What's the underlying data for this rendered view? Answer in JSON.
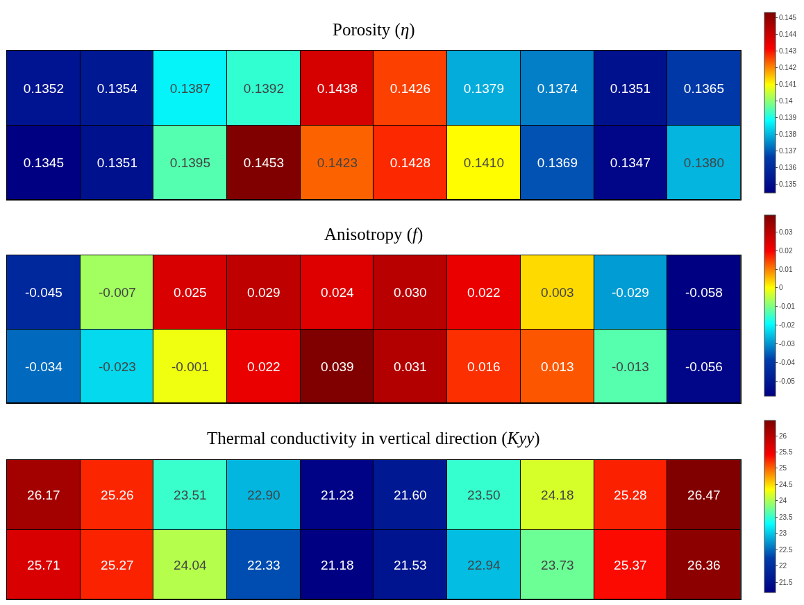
{
  "chart_data": [
    {
      "type": "heatmap",
      "title": "Porosity (η)",
      "categories": [
        null,
        null,
        null,
        null,
        null,
        null,
        null,
        null,
        null,
        null
      ],
      "y_categories": [
        null,
        null
      ],
      "cells": [
        [
          0.1352,
          0.1354,
          0.1387,
          0.1392,
          0.1438,
          0.1426,
          0.1379,
          0.1374,
          0.1351,
          0.1365
        ],
        [
          0.1345,
          0.1351,
          0.1395,
          0.1453,
          0.1423,
          0.1428,
          0.141,
          0.1369,
          0.1347,
          0.138
        ]
      ],
      "cell_labels": [
        [
          "0.1352",
          "0.1354",
          "0.1387",
          "0.1392",
          "0.1438",
          "0.1426",
          "0.1379",
          "0.1374",
          "0.1351",
          "0.1365"
        ],
        [
          "0.1345",
          "0.1351",
          "0.1395",
          "0.1453",
          "0.1423",
          "0.1428",
          "0.1410",
          "0.1369",
          "0.1347",
          "0.1380"
        ]
      ],
      "clim": [
        0.1345,
        0.1453
      ],
      "cticks": [
        0.135,
        0.136,
        0.137,
        0.138,
        0.139,
        0.14,
        0.141,
        0.142,
        0.143,
        0.144,
        0.145
      ]
    },
    {
      "type": "heatmap",
      "title": "Anisotropy (f)",
      "categories": [
        null,
        null,
        null,
        null,
        null,
        null,
        null,
        null,
        null,
        null
      ],
      "y_categories": [
        null,
        null
      ],
      "cells": [
        [
          -0.045,
          -0.007,
          0.025,
          0.029,
          0.024,
          0.03,
          0.022,
          0.003,
          -0.029,
          -0.058
        ],
        [
          -0.034,
          -0.023,
          -0.001,
          0.022,
          0.039,
          0.031,
          0.016,
          0.013,
          -0.013,
          -0.056
        ]
      ],
      "cell_labels": [
        [
          "-0.045",
          "-0.007",
          "0.025",
          "0.029",
          "0.024",
          "0.030",
          "0.022",
          "0.003",
          "-0.029",
          "-0.058"
        ],
        [
          "-0.034",
          "-0.023",
          "-0.001",
          "0.022",
          "0.039",
          "0.031",
          "0.016",
          "0.013",
          "-0.013",
          "-0.056"
        ]
      ],
      "clim": [
        -0.058,
        0.039
      ],
      "cticks": [
        -0.05,
        -0.04,
        -0.03,
        -0.02,
        -0.01,
        0,
        0.01,
        0.02,
        0.03
      ]
    },
    {
      "type": "heatmap",
      "title": "Thermal conductivity in vertical direction (Kyy)",
      "categories": [
        null,
        null,
        null,
        null,
        null,
        null,
        null,
        null,
        null,
        null
      ],
      "y_categories": [
        null,
        null
      ],
      "cells": [
        [
          26.17,
          25.26,
          23.51,
          22.9,
          21.23,
          21.6,
          23.5,
          24.18,
          25.28,
          26.47
        ],
        [
          25.71,
          25.27,
          24.04,
          22.33,
          21.18,
          21.53,
          22.94,
          23.73,
          25.37,
          26.36
        ]
      ],
      "cell_labels": [
        [
          "26.17",
          "25.26",
          "23.51",
          "22.90",
          "21.23",
          "21.60",
          "23.50",
          "24.18",
          "25.28",
          "26.47"
        ],
        [
          "25.71",
          "25.27",
          "24.04",
          "22.33",
          "21.18",
          "21.53",
          "22.94",
          "23.73",
          "25.37",
          "26.36"
        ]
      ],
      "clim": [
        21.18,
        26.47
      ],
      "cticks": [
        21.5,
        22,
        22.5,
        23,
        23.5,
        24,
        24.5,
        25,
        25.5,
        26
      ]
    }
  ]
}
